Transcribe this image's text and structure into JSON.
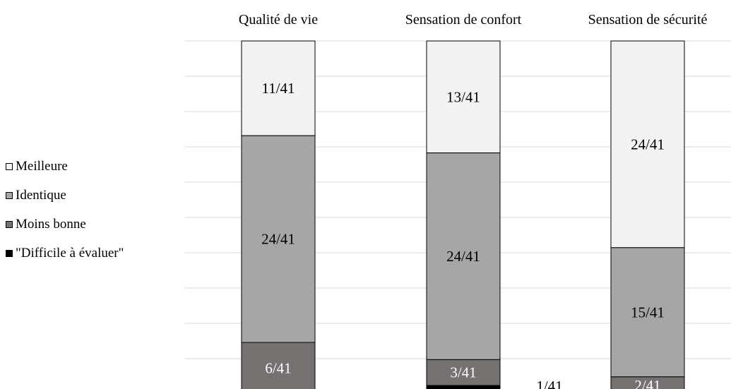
{
  "chart_data": {
    "type": "bar",
    "stacked": true,
    "categories": [
      "Qualité de vie",
      "Sensation de confort",
      "Sensation de sécurité"
    ],
    "total": 41,
    "series": [
      {
        "name": "Meilleure",
        "color": "#f2f2f2",
        "values": [
          11,
          13,
          24
        ],
        "labels": [
          "11/41",
          "13/41",
          "24/41"
        ]
      },
      {
        "name": "Identique",
        "color": "#a6a6a6",
        "values": [
          24,
          24,
          15
        ],
        "labels": [
          "24/41",
          "24/41",
          "15/41"
        ]
      },
      {
        "name": "Moins bonne",
        "color": "#767171",
        "values": [
          6,
          3,
          2
        ],
        "labels": [
          "6/41",
          "3/41",
          "2/41"
        ]
      },
      {
        "name": "\"Difficile à évaluer\"",
        "color": "#000000",
        "values": [
          0,
          1,
          0
        ],
        "labels": [
          "",
          "1/41",
          ""
        ]
      }
    ],
    "legend_position": "left",
    "grid": true,
    "ylim": [
      0,
      41
    ]
  }
}
